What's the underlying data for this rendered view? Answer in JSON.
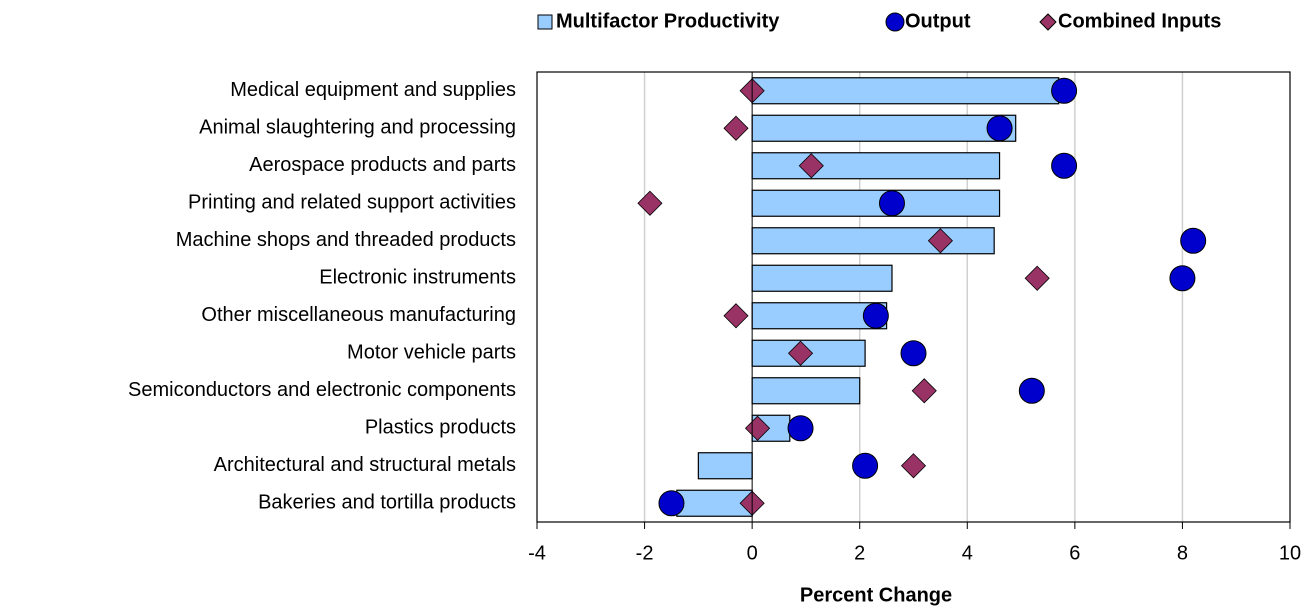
{
  "chart_data": {
    "type": "bar",
    "categories": [
      "Medical equipment and supplies",
      "Animal slaughtering and processing",
      "Aerospace products and parts",
      "Printing and related support activities",
      "Machine shops and threaded products",
      "Electronic instruments",
      "Other miscellaneous manufacturing",
      "Motor vehicle parts",
      "Semiconductors and electronic components",
      "Plastics products",
      "Architectural and structural metals",
      "Bakeries and tortilla products"
    ],
    "series": [
      {
        "name": "Multifactor Productivity",
        "color": "#99ccff",
        "kind": "bar",
        "values": [
          5.7,
          4.9,
          4.6,
          4.6,
          4.5,
          2.6,
          2.5,
          2.1,
          2.0,
          0.7,
          -1.0,
          -1.4
        ]
      },
      {
        "name": "Output",
        "color": "#0000cc",
        "kind": "circle",
        "values": [
          5.8,
          4.6,
          5.8,
          2.6,
          8.2,
          8.0,
          2.3,
          3.0,
          5.2,
          0.9,
          2.1,
          -1.5
        ]
      },
      {
        "name": "Combined Inputs",
        "color": "#993366",
        "kind": "diamond",
        "values": [
          0,
          -0.3,
          1.1,
          -1.9,
          3.5,
          5.3,
          -0.3,
          0.9,
          3.2,
          0.1,
          3.0,
          0
        ]
      }
    ],
    "xlabel": "Percent Change",
    "xlim": [
      -4,
      10
    ],
    "xticks": [
      -4,
      -2,
      0,
      2,
      4,
      6,
      8,
      10
    ],
    "grid": true,
    "legend": "top"
  }
}
